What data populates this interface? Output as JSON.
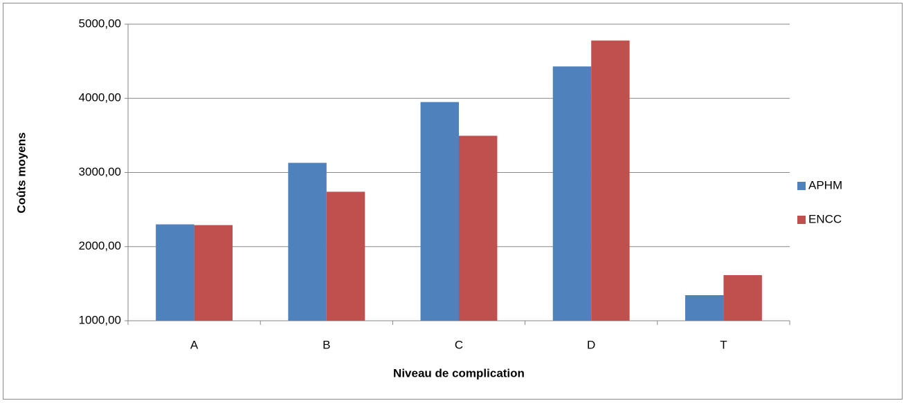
{
  "chart_data": {
    "type": "bar",
    "x_label": "Niveau de complication",
    "y_label": "Coûts moyens",
    "categories": [
      "A",
      "B",
      "C",
      "D",
      "T"
    ],
    "series": [
      {
        "name": "APHM",
        "color": "#4f81bd",
        "values": [
          2300,
          3130,
          3950,
          4430,
          1345
        ]
      },
      {
        "name": "ENCC",
        "color": "#c0504d",
        "values": [
          2290,
          2740,
          3495,
          4780,
          1615
        ]
      }
    ],
    "ylim": [
      1000,
      5000
    ],
    "yticks": [
      {
        "value": 1000,
        "label": "1000,00"
      },
      {
        "value": 2000,
        "label": "2000,00"
      },
      {
        "value": 3000,
        "label": "3000,00"
      },
      {
        "value": 4000,
        "label": "4000,00"
      },
      {
        "value": 5000,
        "label": "5000,00"
      }
    ],
    "grid": true,
    "legend": "right"
  }
}
